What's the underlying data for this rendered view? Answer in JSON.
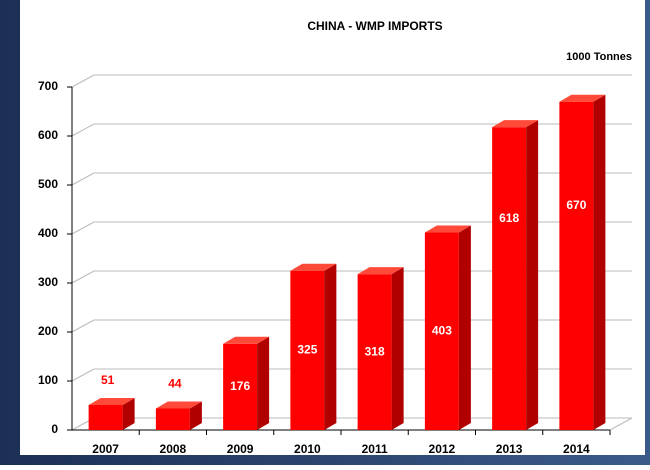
{
  "chart_data": {
    "type": "bar",
    "title": "CHINA - WMP IMPORTS",
    "unit_label": "1000 Tonnes",
    "categories": [
      "2007",
      "2008",
      "2009",
      "2010",
      "2011",
      "2012",
      "2013",
      "2014"
    ],
    "values": [
      51,
      44,
      176,
      325,
      318,
      403,
      618,
      670
    ],
    "color": "#ff0000",
    "ylim": [
      0,
      700
    ],
    "yticks": [
      0,
      100,
      200,
      300,
      400,
      500,
      600,
      700
    ],
    "grid": true
  }
}
